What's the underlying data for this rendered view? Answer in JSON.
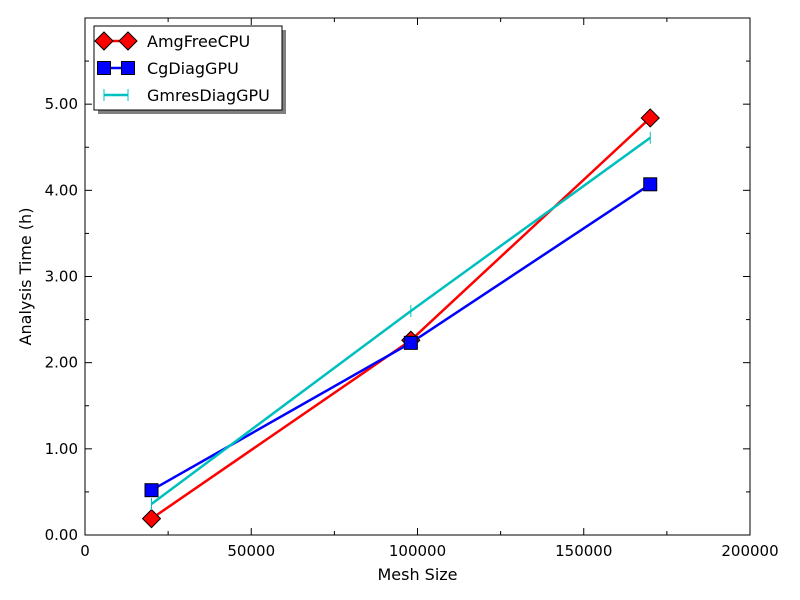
{
  "chart_data": {
    "type": "line",
    "xlabel": "Mesh Size",
    "ylabel": "Analysis Time (h)",
    "xlim": [
      0,
      200000
    ],
    "ylim": [
      0,
      6
    ],
    "x_ticks": [
      0,
      50000,
      100000,
      150000,
      200000
    ],
    "x_tick_labels": [
      "0",
      "50000",
      "100000",
      "150000",
      "200000"
    ],
    "y_ticks": [
      0,
      1,
      2,
      3,
      4,
      5
    ],
    "y_tick_labels": [
      "0.00",
      "1.00",
      "2.00",
      "3.00",
      "4.00",
      "5.00"
    ],
    "grid": false,
    "legend_position": "top-left",
    "series": [
      {
        "name": "AmgFreeCPU",
        "color": "#ff0000",
        "marker": "diamond",
        "x": [
          20000,
          98000,
          170000
        ],
        "y": [
          0.19,
          2.26,
          4.84
        ]
      },
      {
        "name": "CgDiagGPU",
        "color": "#0000ff",
        "marker": "square",
        "x": [
          20000,
          98000,
          170000
        ],
        "y": [
          0.52,
          2.23,
          4.07
        ]
      },
      {
        "name": "GmresDiagGPU",
        "color": "#00bfbf",
        "marker": "vline",
        "x": [
          20000,
          98000,
          170000
        ],
        "y": [
          0.36,
          2.6,
          4.61
        ]
      }
    ]
  }
}
